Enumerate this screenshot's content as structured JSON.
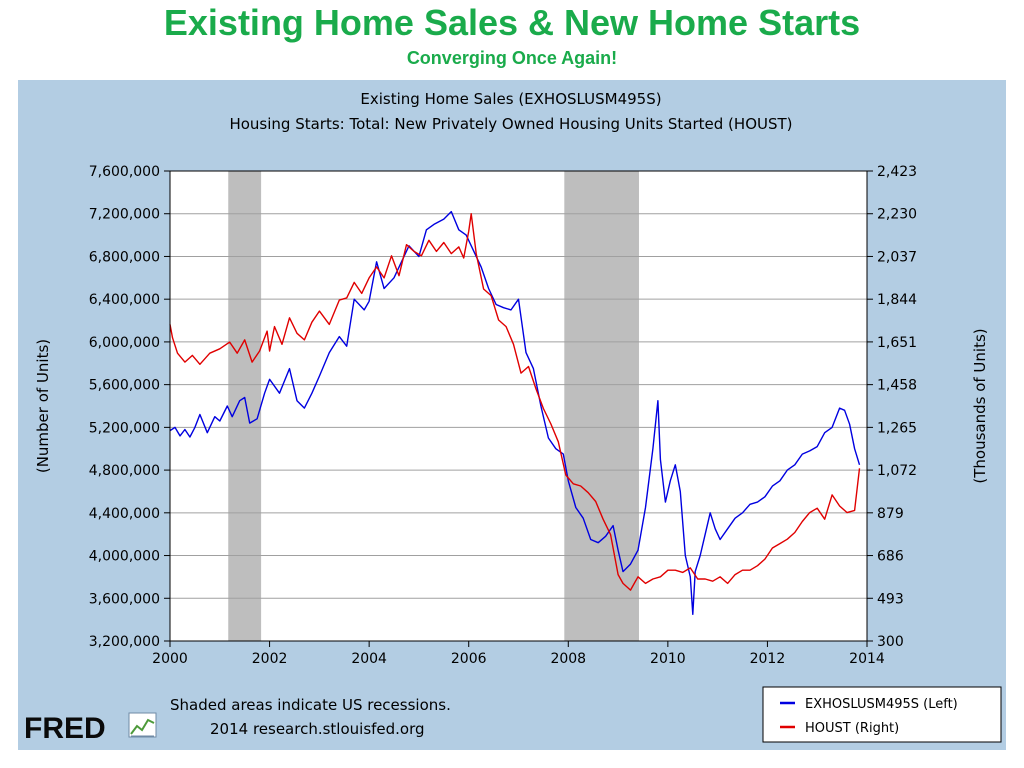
{
  "slide": {
    "title": "Existing Home Sales & New Home Starts",
    "subtitle": "Converging Once Again!"
  },
  "chart_header": {
    "line1": "Existing Home Sales (EXHOSLUSM495S)",
    "line2": "Housing Starts: Total: New Privately Owned Housing Units Started (HOUST)"
  },
  "footer": {
    "note1": "Shaded areas indicate US recessions.",
    "note2": "2014 research.stlouisfed.org",
    "logo": "FRED"
  },
  "colors": {
    "green_title": "#1aab4b",
    "panel_bg": "#b3cde3",
    "recession": "#bebebe",
    "exhosl": "#0000e0",
    "houst": "#e00000"
  },
  "chart_data": {
    "type": "line",
    "xlabel": "",
    "ylabel_left": "(Number of Units)",
    "ylabel_right": "(Thousands of Units)",
    "xlim": [
      2000,
      2014
    ],
    "x_ticks": [
      2000,
      2002,
      2004,
      2006,
      2008,
      2010,
      2012,
      2014
    ],
    "x_tick_labels": [
      "2000",
      "2002",
      "2004",
      "2006",
      "2008",
      "2010",
      "2012",
      "2014"
    ],
    "ylim_left": [
      3200000,
      7600000
    ],
    "ylim_right": [
      300,
      2423
    ],
    "left_tick_values": [
      3200000,
      3600000,
      4000000,
      4400000,
      4800000,
      5200000,
      5600000,
      6000000,
      6400000,
      6800000,
      7200000,
      7600000
    ],
    "left_tick_labels": [
      "3,200,000",
      "3,600,000",
      "4,000,000",
      "4,400,000",
      "4,800,000",
      "5,200,000",
      "5,600,000",
      "6,000,000",
      "6,400,000",
      "6,800,000",
      "7,200,000",
      "7,600,000"
    ],
    "right_tick_values": [
      300,
      493,
      686,
      879,
      1072,
      1265,
      1458,
      1651,
      1844,
      2037,
      2230,
      2423
    ],
    "right_tick_labels": [
      "300",
      "493",
      "686",
      "879",
      "1,072",
      "1,265",
      "1,458",
      "1,651",
      "1,844",
      "2,037",
      "2,230",
      "2,423"
    ],
    "grid": true,
    "legend_position": "bottom-right",
    "recessions": [
      [
        2001.17,
        2001.83
      ],
      [
        2007.92,
        2009.42
      ]
    ],
    "series": [
      {
        "name": "EXHOSLUSM495S (Left)",
        "axis": "left",
        "color": "#0000e0",
        "x": [
          2000.0,
          2000.1,
          2000.2,
          2000.3,
          2000.4,
          2000.5,
          2000.6,
          2000.75,
          2000.9,
          2001.0,
          2001.15,
          2001.25,
          2001.4,
          2001.5,
          2001.6,
          2001.75,
          2001.9,
          2002.0,
          2002.2,
          2002.4,
          2002.55,
          2002.7,
          2002.85,
          2003.0,
          2003.2,
          2003.4,
          2003.55,
          2003.7,
          2003.9,
          2004.0,
          2004.15,
          2004.3,
          2004.5,
          2004.65,
          2004.8,
          2005.0,
          2005.15,
          2005.3,
          2005.5,
          2005.65,
          2005.8,
          2005.95,
          2006.1,
          2006.25,
          2006.4,
          2006.55,
          2006.7,
          2006.85,
          2007.0,
          2007.15,
          2007.3,
          2007.45,
          2007.6,
          2007.75,
          2007.9,
          2008.0,
          2008.15,
          2008.3,
          2008.45,
          2008.6,
          2008.75,
          2008.9,
          2009.0,
          2009.1,
          2009.25,
          2009.4,
          2009.55,
          2009.7,
          2009.8,
          2009.85,
          2009.95,
          2010.05,
          2010.15,
          2010.25,
          2010.35,
          2010.45,
          2010.5,
          2010.55,
          2010.65,
          2010.75,
          2010.85,
          2010.95,
          2011.05,
          2011.2,
          2011.35,
          2011.5,
          2011.65,
          2011.8,
          2011.95,
          2012.1,
          2012.25,
          2012.4,
          2012.55,
          2012.7,
          2012.85,
          2013.0,
          2013.15,
          2013.3,
          2013.45,
          2013.55,
          2013.65,
          2013.75,
          2013.85
        ],
        "values": [
          5170000,
          5200000,
          5120000,
          5180000,
          5110000,
          5200000,
          5320000,
          5150000,
          5300000,
          5260000,
          5400000,
          5300000,
          5450000,
          5480000,
          5240000,
          5280000,
          5520000,
          5650000,
          5520000,
          5750000,
          5450000,
          5380000,
          5520000,
          5680000,
          5900000,
          6050000,
          5960000,
          6400000,
          6300000,
          6380000,
          6750000,
          6500000,
          6600000,
          6750000,
          6900000,
          6800000,
          7050000,
          7100000,
          7150000,
          7220000,
          7050000,
          7000000,
          6850000,
          6700000,
          6500000,
          6350000,
          6320000,
          6300000,
          6400000,
          5900000,
          5750000,
          5400000,
          5100000,
          5000000,
          4950000,
          4700000,
          4450000,
          4350000,
          4150000,
          4120000,
          4180000,
          4280000,
          4050000,
          3850000,
          3920000,
          4050000,
          4450000,
          5000000,
          5450000,
          4900000,
          4500000,
          4700000,
          4850000,
          4600000,
          4000000,
          3800000,
          3450000,
          3850000,
          4000000,
          4200000,
          4400000,
          4250000,
          4150000,
          4250000,
          4350000,
          4400000,
          4480000,
          4500000,
          4550000,
          4650000,
          4700000,
          4800000,
          4850000,
          4950000,
          4980000,
          5020000,
          5150000,
          5200000,
          5380000,
          5360000,
          5230000,
          5000000,
          4850000
        ]
      },
      {
        "name": "HOUST (Right)",
        "axis": "right",
        "color": "#e00000",
        "x": [
          2000.0,
          2000.05,
          2000.15,
          2000.3,
          2000.45,
          2000.6,
          2000.8,
          2001.0,
          2001.2,
          2001.35,
          2001.5,
          2001.65,
          2001.8,
          2001.95,
          2002.0,
          2002.1,
          2002.25,
          2002.4,
          2002.55,
          2002.7,
          2002.85,
          2003.0,
          2003.2,
          2003.4,
          2003.55,
          2003.7,
          2003.85,
          2004.0,
          2004.15,
          2004.3,
          2004.45,
          2004.6,
          2004.75,
          2004.9,
          2005.05,
          2005.2,
          2005.35,
          2005.5,
          2005.65,
          2005.8,
          2005.9,
          2006.0,
          2006.05,
          2006.15,
          2006.3,
          2006.45,
          2006.6,
          2006.75,
          2006.9,
          2007.05,
          2007.2,
          2007.35,
          2007.5,
          2007.65,
          2007.8,
          2007.95,
          2008.1,
          2008.25,
          2008.4,
          2008.55,
          2008.7,
          2008.85,
          2009.0,
          2009.1,
          2009.25,
          2009.4,
          2009.55,
          2009.7,
          2009.85,
          2010.0,
          2010.15,
          2010.3,
          2010.45,
          2010.6,
          2010.75,
          2010.9,
          2011.05,
          2011.2,
          2011.35,
          2011.5,
          2011.65,
          2011.8,
          2011.95,
          2012.1,
          2012.25,
          2012.4,
          2012.55,
          2012.7,
          2012.85,
          2013.0,
          2013.15,
          2013.3,
          2013.45,
          2013.6,
          2013.75,
          2013.85
        ],
        "values": [
          1730,
          1670,
          1600,
          1560,
          1590,
          1550,
          1600,
          1620,
          1650,
          1600,
          1660,
          1560,
          1610,
          1700,
          1610,
          1720,
          1640,
          1760,
          1690,
          1660,
          1740,
          1790,
          1730,
          1840,
          1850,
          1920,
          1870,
          1940,
          1990,
          1940,
          2040,
          1950,
          2090,
          2060,
          2040,
          2110,
          2060,
          2100,
          2050,
          2080,
          2030,
          2150,
          2230,
          2050,
          1890,
          1860,
          1750,
          1720,
          1640,
          1510,
          1540,
          1440,
          1350,
          1280,
          1200,
          1050,
          1010,
          1000,
          970,
          930,
          850,
          780,
          600,
          560,
          530,
          590,
          560,
          580,
          590,
          620,
          620,
          610,
          630,
          580,
          580,
          570,
          590,
          560,
          600,
          620,
          620,
          640,
          670,
          720,
          740,
          760,
          790,
          840,
          880,
          900,
          850,
          960,
          910,
          880,
          890,
          1080
        ]
      }
    ]
  }
}
